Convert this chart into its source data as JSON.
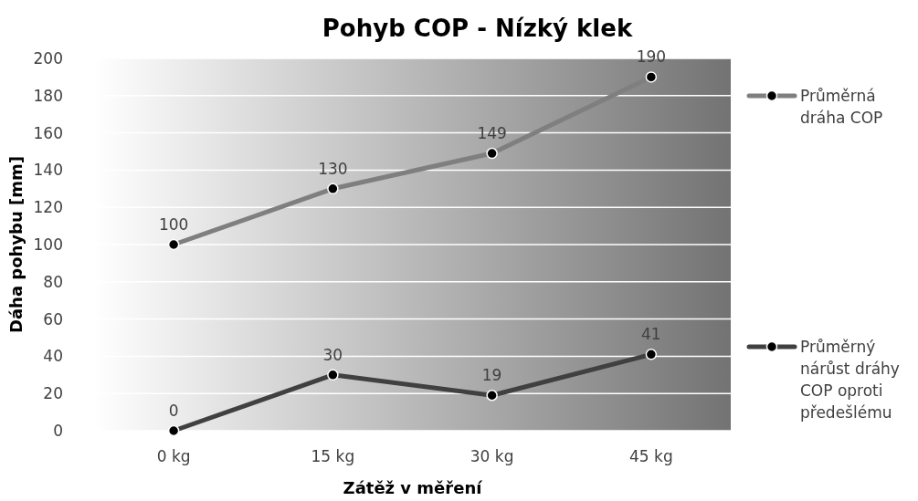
{
  "chart_data": {
    "type": "line",
    "title": "Pohyb COP - Nízký klek",
    "xlabel": "Zátěž v měření",
    "ylabel": "Dáha pohybu [mm]",
    "categories": [
      "0 kg",
      "15 kg",
      "30 kg",
      "45 kg"
    ],
    "series": [
      {
        "name": "Průměrná dráha COP",
        "color": "#7f7f7f",
        "values": [
          100,
          130,
          149,
          190
        ]
      },
      {
        "name": "Průměrný nárůst dráhy COP oproti předešlému",
        "color": "#404040",
        "values": [
          0,
          30,
          19,
          41
        ]
      }
    ],
    "ylim": [
      0,
      200
    ],
    "yticks": [
      0,
      20,
      40,
      60,
      80,
      100,
      120,
      140,
      160,
      180,
      200
    ],
    "grid": "y",
    "legend": "right",
    "marker": "circle",
    "line_style": "solid",
    "data_labels": true
  }
}
